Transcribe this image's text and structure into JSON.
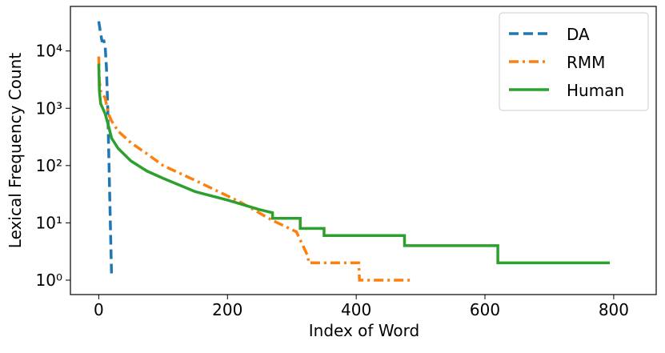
{
  "chart_data": {
    "type": "line",
    "log_y": true,
    "legend": "upper right",
    "xlabel": "Index of Word",
    "ylabel": "Lexical Frequency Count",
    "xlim": [
      -44,
      866
    ],
    "xticks": [
      0,
      200,
      400,
      600,
      800
    ],
    "ylim": [
      0.56,
      60000
    ],
    "yticks": [
      {
        "value": 1,
        "label": "10⁰"
      },
      {
        "value": 10,
        "label": "10¹"
      },
      {
        "value": 100,
        "label": "10²"
      },
      {
        "value": 1000,
        "label": "10³"
      },
      {
        "value": 10000,
        "label": "10⁴"
      }
    ],
    "series": [
      {
        "name": "DA",
        "color": "#1f77b4",
        "dash": "12,6",
        "x": [
          0,
          3,
          5,
          8,
          10,
          12,
          14,
          16,
          18,
          20
        ],
        "values": [
          33000,
          20000,
          15000,
          15000,
          12000,
          5000,
          1000,
          100,
          10,
          1.1
        ]
      },
      {
        "name": "RMM",
        "color": "#ff7f0e",
        "dash": "12,5,3,5",
        "x": [
          0,
          1,
          3,
          10,
          15,
          20,
          30,
          50,
          75,
          100,
          150,
          220,
          270,
          307,
          325,
          326,
          404,
          405,
          484
        ],
        "values": [
          8000,
          3000,
          2000,
          1500,
          800,
          600,
          400,
          250,
          160,
          100,
          55,
          23,
          11,
          7,
          2.6,
          2,
          2,
          1,
          1
        ]
      },
      {
        "name": "Human",
        "color": "#2ca02c",
        "dash": "",
        "x": [
          0,
          1,
          3,
          10,
          15,
          20,
          30,
          50,
          75,
          100,
          150,
          200,
          250,
          270,
          270,
          313,
          313,
          350,
          350,
          475,
          475,
          620,
          620,
          794
        ],
        "values": [
          6000,
          2000,
          1200,
          800,
          500,
          300,
          200,
          120,
          80,
          60,
          35,
          25,
          17,
          15,
          12,
          12,
          8,
          8,
          6,
          6,
          4,
          4,
          2,
          2
        ]
      }
    ]
  }
}
